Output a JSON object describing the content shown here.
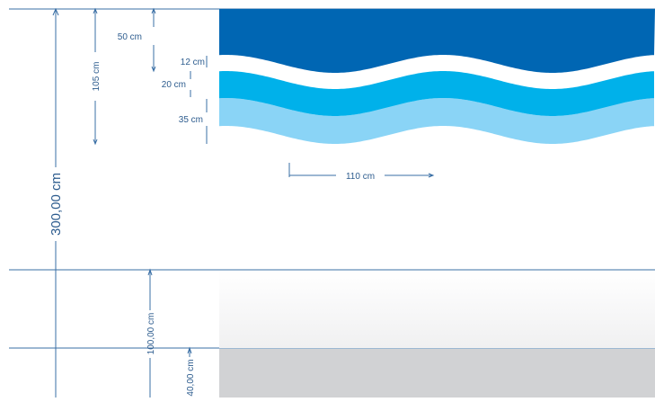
{
  "colors": {
    "dark_blue": "#0066B3",
    "mid_blue": "#00B1EA",
    "light_blue": "#8AD4F6",
    "dimension_line": "#3A6FA5",
    "dimension_text": "#2D5C8E",
    "grey_band": "#D1D2D4",
    "light_band": "#F4F4F5"
  },
  "dimensions": {
    "total_height": "300,00 cm",
    "wave_area_height": "105 cm",
    "top_band": "50 cm",
    "white_gap": "12 cm",
    "mid_band": "20 cm",
    "light_band": "35 cm",
    "wave_period": "110 cm",
    "lower_zone": "100,00 cm",
    "bottom_zone": "40,00 cm"
  }
}
